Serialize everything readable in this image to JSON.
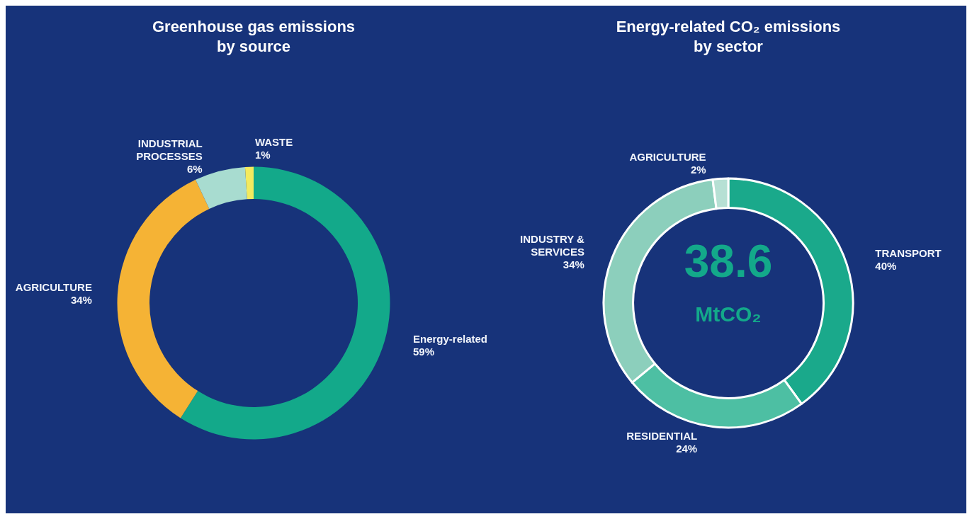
{
  "chart_data": [
    {
      "type": "donut",
      "title": "Greenhouse gas emissions\nby source",
      "categories": [
        "Energy-related",
        "AGRICULTURE",
        "INDUSTRIAL\nPROCESSES",
        "WASTE"
      ],
      "values": [
        59,
        34,
        6,
        1
      ],
      "value_labels": [
        "59%",
        "34%",
        "6%",
        "1%"
      ],
      "colors": [
        "#13a98a",
        "#f5b335",
        "#a8dcd0",
        "#f3ea5f"
      ],
      "legend": false
    },
    {
      "type": "donut",
      "title": "Energy-related CO₂ emissions\nby sector",
      "categories": [
        "TRANSPORT",
        "RESIDENTIAL",
        "INDUSTRY &\nSERVICES",
        "AGRICULTURE"
      ],
      "values": [
        40,
        24,
        34,
        2
      ],
      "value_labels": [
        "40%",
        "24%",
        "34%",
        "2%"
      ],
      "colors": [
        "#1aa98b",
        "#4dbfa3",
        "#8ccfbc",
        "#b6e0d4"
      ],
      "annotations": [
        "38.6",
        "MtCO₂"
      ],
      "legend": false
    }
  ]
}
